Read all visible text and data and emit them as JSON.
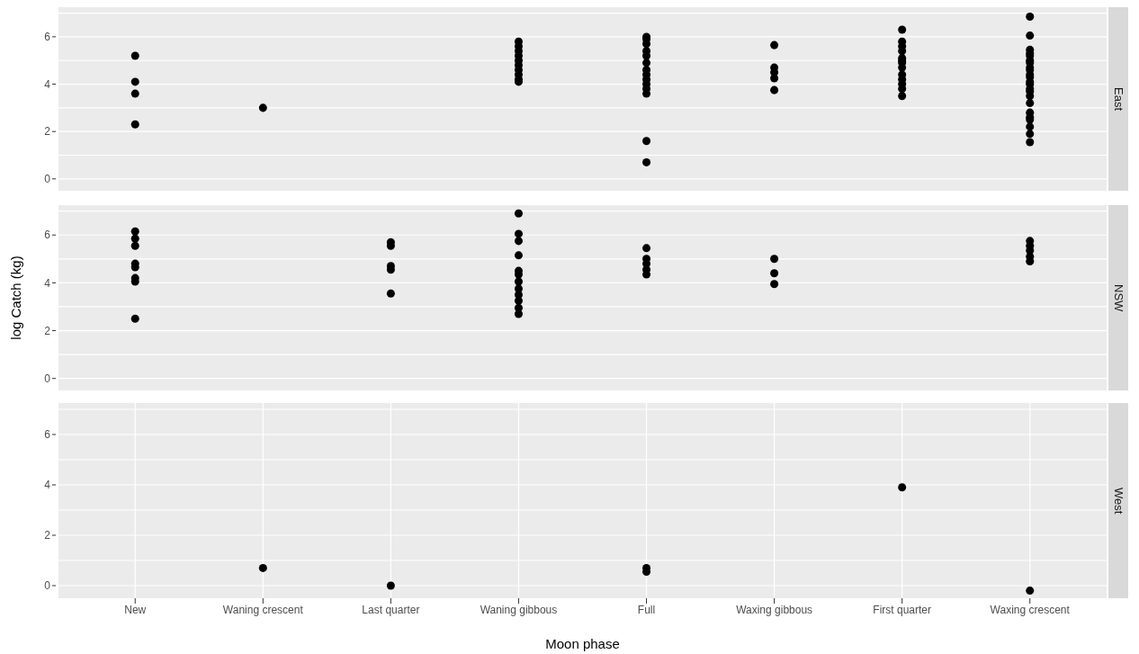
{
  "chart_data": [
    {
      "type": "scatter",
      "title": "East",
      "categories": [
        "New",
        "Waning crescent",
        "Last quarter",
        "Waning gibbous",
        "Full",
        "Waxing gibbous",
        "First quarter",
        "Waxing crescent"
      ],
      "marker": "circle",
      "grid": true,
      "tick_labels": "y",
      "ylim": [
        -0.5,
        7.25
      ],
      "yticks": [
        0,
        {
          "value": 1,
          "label": null
        },
        2,
        {
          "value": 3,
          "label": null
        },
        4,
        {
          "value": 5,
          "label": null
        },
        6,
        {
          "value": 7,
          "label": null
        }
      ],
      "series": [
        {
          "color": "#000000",
          "x": [
            "New",
            "New",
            "New",
            "New",
            "Waning crescent",
            "Waning gibbous",
            "Waning gibbous",
            "Waning gibbous",
            "Waning gibbous",
            "Waning gibbous",
            "Waning gibbous",
            "Waning gibbous",
            "Waning gibbous",
            "Waning gibbous",
            "Waning gibbous",
            "Full",
            "Full",
            "Full",
            "Full",
            "Full",
            "Full",
            "Full",
            "Full",
            "Full",
            "Full",
            "Full",
            "Full",
            "Full",
            "Full",
            "Waxing gibbous",
            "Waxing gibbous",
            "Waxing gibbous",
            "Waxing gibbous",
            "Waxing gibbous",
            "First quarter",
            "First quarter",
            "First quarter",
            "First quarter",
            "First quarter",
            "First quarter",
            "First quarter",
            "First quarter",
            "First quarter",
            "First quarter",
            "First quarter",
            "First quarter",
            "First quarter",
            "Waxing crescent",
            "Waxing crescent",
            "Waxing crescent",
            "Waxing crescent",
            "Waxing crescent",
            "Waxing crescent",
            "Waxing crescent",
            "Waxing crescent",
            "Waxing crescent",
            "Waxing crescent",
            "Waxing crescent",
            "Waxing crescent",
            "Waxing crescent",
            "Waxing crescent",
            "Waxing crescent",
            "Waxing crescent",
            "Waxing crescent",
            "Waxing crescent",
            "Waxing crescent",
            "Waxing crescent",
            "Waxing crescent",
            "Waxing crescent",
            "Waxing crescent"
          ],
          "values": [
            5.2,
            4.1,
            3.6,
            2.3,
            3.0,
            5.8,
            5.6,
            5.4,
            5.2,
            5.0,
            4.8,
            4.6,
            4.4,
            4.2,
            4.1,
            6.0,
            5.9,
            5.7,
            5.4,
            5.2,
            4.9,
            4.6,
            4.4,
            4.2,
            4.0,
            3.8,
            3.6,
            1.6,
            0.7,
            5.65,
            4.7,
            4.5,
            4.25,
            3.75,
            6.3,
            5.8,
            5.6,
            5.4,
            5.1,
            5.0,
            4.9,
            4.7,
            4.4,
            4.2,
            4.0,
            3.8,
            3.5,
            6.85,
            6.05,
            5.45,
            5.3,
            5.2,
            5.0,
            4.9,
            4.7,
            4.6,
            4.4,
            4.3,
            4.1,
            4.0,
            3.8,
            3.7,
            3.5,
            3.2,
            2.8,
            2.6,
            2.5,
            2.2,
            1.9,
            1.55
          ]
        }
      ]
    },
    {
      "type": "scatter",
      "title": "NSW",
      "ylabel": "log Catch (kg)",
      "categories": [
        "New",
        "Waning crescent",
        "Last quarter",
        "Waning gibbous",
        "Full",
        "Waxing gibbous",
        "First quarter",
        "Waxing crescent"
      ],
      "marker": "circle",
      "grid": true,
      "tick_labels": "y",
      "ylim": [
        -0.5,
        7.25
      ],
      "yticks": [
        0,
        {
          "value": 1,
          "label": null
        },
        2,
        {
          "value": 3,
          "label": null
        },
        4,
        {
          "value": 5,
          "label": null
        },
        6,
        {
          "value": 7,
          "label": null
        }
      ],
      "series": [
        {
          "color": "#000000",
          "x": [
            "New",
            "New",
            "New",
            "New",
            "New",
            "New",
            "New",
            "New",
            "Last quarter",
            "Last quarter",
            "Last quarter",
            "Last quarter",
            "Last quarter",
            "Waning gibbous",
            "Waning gibbous",
            "Waning gibbous",
            "Waning gibbous",
            "Waning gibbous",
            "Waning gibbous",
            "Waning gibbous",
            "Waning gibbous",
            "Waning gibbous",
            "Waning gibbous",
            "Waning gibbous",
            "Waning gibbous",
            "Full",
            "Full",
            "Full",
            "Full",
            "Full",
            "Waxing gibbous",
            "Waxing gibbous",
            "Waxing gibbous",
            "Waxing crescent",
            "Waxing crescent",
            "Waxing crescent",
            "Waxing crescent",
            "Waxing crescent"
          ],
          "values": [
            6.15,
            5.85,
            5.55,
            4.8,
            4.65,
            4.2,
            4.05,
            2.5,
            5.7,
            5.55,
            4.7,
            4.55,
            3.55,
            6.9,
            6.05,
            5.75,
            5.15,
            4.5,
            4.35,
            4.05,
            3.75,
            3.5,
            3.25,
            2.95,
            2.7,
            5.45,
            5.0,
            4.8,
            4.55,
            4.35,
            5.0,
            4.4,
            3.95,
            5.75,
            5.55,
            5.35,
            5.1,
            4.9
          ]
        }
      ]
    },
    {
      "type": "scatter",
      "title": "West",
      "xlabel": "Moon phase",
      "categories": [
        "New",
        "Waning crescent",
        "Last quarter",
        "Waning gibbous",
        "Full",
        "Waxing gibbous",
        "First quarter",
        "Waxing crescent"
      ],
      "marker": "circle",
      "grid": true,
      "ylim": [
        -0.5,
        7.25
      ],
      "yticks": [
        0,
        {
          "value": 1,
          "label": null
        },
        2,
        {
          "value": 3,
          "label": null
        },
        4,
        {
          "value": 5,
          "label": null
        },
        6,
        {
          "value": 7,
          "label": null
        }
      ],
      "series": [
        {
          "color": "#000000",
          "x": [
            "Waning crescent",
            "Last quarter",
            "Full",
            "Full",
            "First quarter",
            "Waxing crescent"
          ],
          "values": [
            0.7,
            0.0,
            0.7,
            0.55,
            3.9,
            -0.2
          ]
        }
      ]
    }
  ]
}
